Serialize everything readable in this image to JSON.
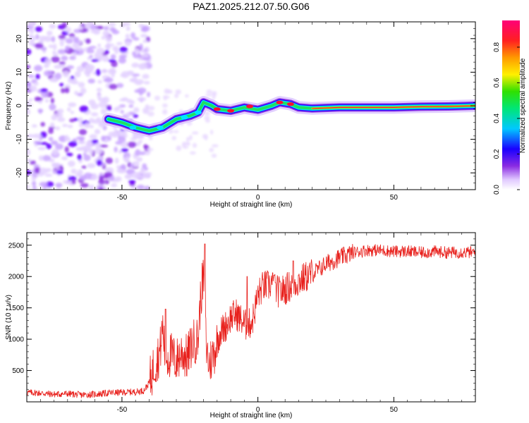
{
  "title": "PAZ1.2025.212.07.50.G06",
  "colors": {
    "snr_line": "#e8201c",
    "purple": "#8a2be2",
    "violet": "#6a00ff",
    "cyan": "#00e5ff",
    "green": "#20e060",
    "yellow": "#ffe600",
    "red": "#ff1030"
  },
  "chart_data": [
    {
      "type": "heatmap",
      "title": "PAZ1.2025.212.07.50.G06",
      "xlabel": "Height of straight line (km)",
      "ylabel": "Frequency (Hz)",
      "xlim": [
        -85,
        80
      ],
      "ylim": [
        -25,
        25
      ],
      "x_ticks": [
        -50,
        0,
        50
      ],
      "y_ticks": [
        -20,
        -10,
        0,
        10,
        20
      ],
      "x_tick_labels": [
        "-50",
        "0",
        "50"
      ],
      "y_tick_labels": [
        "-20",
        "-10",
        "0",
        "10",
        "20"
      ],
      "colorbar": {
        "label": "Normalized spectral amplitude",
        "range": [
          0.0,
          0.95
        ],
        "ticks": [
          0.0,
          0.2,
          0.4,
          0.6,
          0.8
        ],
        "tick_labels": [
          "0.0",
          "0.2",
          "0.4",
          "0.6",
          "0.8"
        ],
        "colormap": "rainbow (white-lavender, violet, blue, cyan, green, yellow, orange, red, magenta)"
      },
      "ridge": {
        "height_km": [
          -55,
          -50,
          -45,
          -40,
          -35,
          -30,
          -25,
          -22,
          -20,
          -17,
          -15,
          -10,
          -5,
          0,
          5,
          8,
          12,
          15,
          20,
          30,
          40,
          50,
          60,
          70,
          80
        ],
        "frequency_hz": [
          -4,
          -5,
          -6.5,
          -7.5,
          -6.5,
          -4,
          -3,
          -2,
          1,
          0,
          -1,
          -1.5,
          -0.5,
          -1.2,
          0,
          1,
          0.5,
          -0.5,
          -0.8,
          -0.5,
          -0.5,
          -0.5,
          -0.3,
          -0.2,
          0
        ]
      }
    },
    {
      "type": "line",
      "xlabel": "Height of straight line (km)",
      "ylabel": "SNR (10 * v/v)",
      "xlim": [
        -85,
        80
      ],
      "ylim": [
        0,
        2700
      ],
      "x_ticks": [
        -50,
        0,
        50
      ],
      "y_ticks": [
        500,
        1000,
        1500,
        2000,
        2500
      ],
      "x_tick_labels": [
        "-50",
        "0",
        "50"
      ],
      "y_tick_labels": [
        "500",
        "1000",
        "1500",
        "2000",
        "2500"
      ],
      "series": [
        {
          "x": [
            -85,
            -80,
            -75,
            -70,
            -65,
            -60,
            -55,
            -50,
            -45,
            -42,
            -40,
            -38,
            -36,
            -35,
            -34,
            -32,
            -30,
            -28,
            -26,
            -24,
            -22,
            -21,
            -20,
            -19,
            -18,
            -16,
            -14,
            -12,
            -10,
            -8,
            -6,
            -4,
            -2,
            0,
            2,
            4,
            5,
            6,
            8,
            10,
            12,
            14,
            16,
            18,
            20,
            22,
            25,
            30,
            35,
            40,
            45,
            50,
            55,
            60,
            65,
            70,
            75,
            80
          ],
          "y": [
            150,
            140,
            120,
            130,
            110,
            120,
            140,
            150,
            160,
            180,
            300,
            600,
            800,
            1200,
            700,
            750,
            650,
            800,
            700,
            950,
            1000,
            1700,
            2000,
            900,
            600,
            800,
            1100,
            1200,
            1350,
            1400,
            1300,
            1200,
            1300,
            1700,
            1850,
            1850,
            1900,
            1800,
            1750,
            1800,
            1850,
            1900,
            1950,
            2000,
            2050,
            2100,
            2200,
            2300,
            2380,
            2420,
            2420,
            2400,
            2400,
            2380,
            2400,
            2380,
            2390,
            2380
          ]
        }
      ],
      "spikes": [
        {
          "x": -34,
          "y": 1480
        },
        {
          "x": -19.5,
          "y": 2520
        },
        {
          "x": -4,
          "y": 2000
        },
        {
          "x": 6,
          "y": 2020
        },
        {
          "x": 13,
          "y": 2250
        }
      ]
    }
  ]
}
